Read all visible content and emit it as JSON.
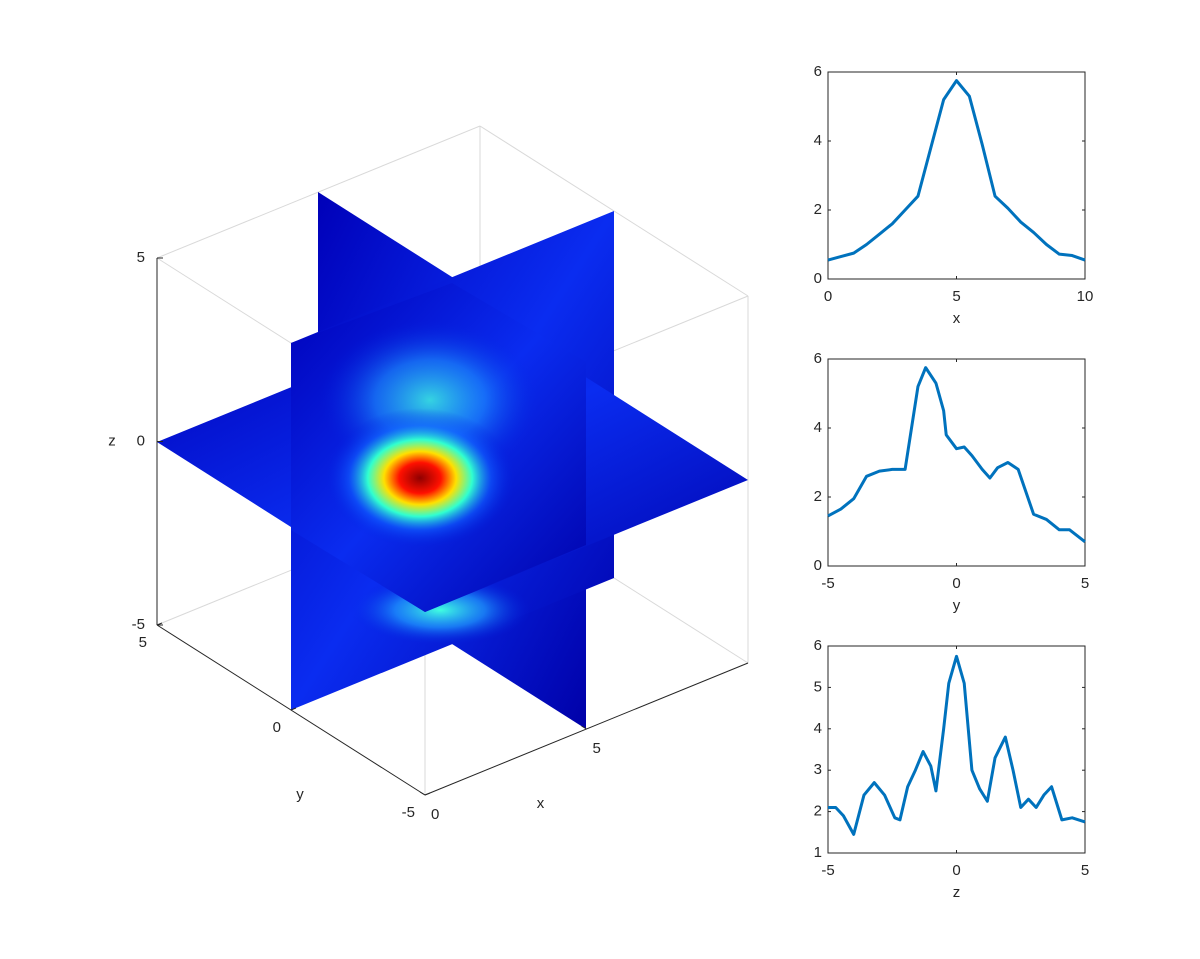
{
  "chart_data": [
    {
      "type": "slice3d",
      "xlabel": "x",
      "ylabel": "y",
      "zlabel": "z",
      "xlim": [
        0,
        10
      ],
      "ylim": [
        -5,
        5
      ],
      "zlim": [
        -5,
        5
      ],
      "xticks": [
        0,
        5
      ],
      "yticks": [
        -5,
        0,
        5
      ],
      "zticks": [
        -5,
        0,
        5
      ]
    },
    {
      "type": "line",
      "xlabel": "x",
      "color": "#0072bd",
      "x": [
        0,
        0.5,
        1,
        1.5,
        2,
        2.5,
        3,
        3.5,
        4,
        4.5,
        5,
        5.5,
        6,
        6.5,
        7,
        7.5,
        8,
        8.5,
        9,
        9.5,
        10
      ],
      "values": [
        0.55,
        0.65,
        0.75,
        1.0,
        1.3,
        1.6,
        2.0,
        2.4,
        3.8,
        5.2,
        5.75,
        5.3,
        3.9,
        2.4,
        2.05,
        1.65,
        1.35,
        1.0,
        0.72,
        0.68,
        0.55
      ],
      "xlim": [
        0,
        10
      ],
      "ylim": [
        0,
        6
      ],
      "xticks": [
        0,
        5,
        10
      ],
      "yticks": [
        0,
        2,
        4,
        6
      ]
    },
    {
      "type": "line",
      "xlabel": "y",
      "color": "#0072bd",
      "x": [
        -5,
        -4.5,
        -4,
        -3.5,
        -3,
        -2.5,
        -2,
        -1.5,
        -1.2,
        -0.8,
        -0.5,
        -0.4,
        0,
        0.3,
        0.6,
        1.0,
        1.3,
        1.6,
        2.0,
        2.4,
        3,
        3.5,
        4,
        4.4,
        5
      ],
      "values": [
        1.45,
        1.65,
        1.95,
        2.6,
        2.75,
        2.8,
        2.8,
        5.2,
        5.75,
        5.3,
        4.5,
        3.8,
        3.4,
        3.45,
        3.2,
        2.8,
        2.55,
        2.85,
        3.0,
        2.8,
        1.5,
        1.35,
        1.05,
        1.05,
        0.7
      ],
      "xlim": [
        -5,
        5
      ],
      "ylim": [
        0,
        6
      ],
      "xticks": [
        -5,
        0,
        5
      ],
      "yticks": [
        0,
        2,
        4,
        6
      ]
    },
    {
      "type": "line",
      "xlabel": "z",
      "color": "#0072bd",
      "x": [
        -5,
        -4.7,
        -4.4,
        -4.0,
        -3.6,
        -3.2,
        -2.8,
        -2.4,
        -2.2,
        -1.9,
        -1.6,
        -1.3,
        -1.0,
        -0.8,
        -0.5,
        -0.3,
        0,
        0.3,
        0.6,
        0.9,
        1.2,
        1.5,
        1.9,
        2.2,
        2.5,
        2.8,
        3.1,
        3.4,
        3.7,
        4.1,
        4.5,
        5
      ],
      "values": [
        2.1,
        2.1,
        1.9,
        1.45,
        2.4,
        2.7,
        2.4,
        1.85,
        1.8,
        2.6,
        3.0,
        3.45,
        3.1,
        2.5,
        4.0,
        5.1,
        5.75,
        5.1,
        3.0,
        2.55,
        2.25,
        3.3,
        3.8,
        3.0,
        2.1,
        2.3,
        2.1,
        2.4,
        2.6,
        1.8,
        1.85,
        1.75
      ],
      "xlim": [
        -5,
        5
      ],
      "ylim": [
        1,
        6
      ],
      "xticks": [
        -5,
        0,
        5
      ],
      "yticks": [
        1,
        2,
        3,
        4,
        5,
        6
      ]
    }
  ]
}
